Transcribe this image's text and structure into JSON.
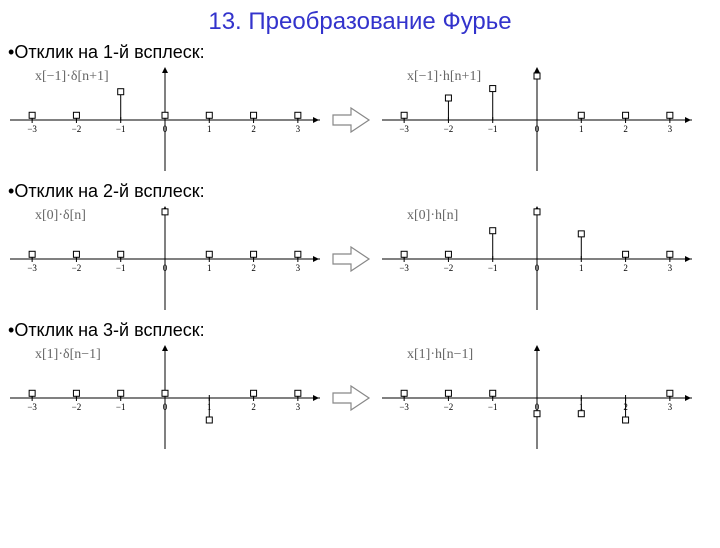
{
  "title": {
    "text": "13. Преобразование Фурье",
    "color": "#3333cc",
    "fontsize": 24
  },
  "bullet_color": "#000000",
  "sections": [
    {
      "bullet": "Отклик на 1-й всплеск:"
    },
    {
      "bullet": "Отклик на 2-й всплеск:"
    },
    {
      "bullet": "Отклик на 3-й всплеск:"
    }
  ],
  "plot_style": {
    "axis_color": "#000000",
    "tick_color": "#000000",
    "marker_stroke": "#000000",
    "marker_fill": "#ffffff",
    "marker_size": 6,
    "line_width": 1,
    "tick_label_fontsize": 9,
    "formula_color": "#666666",
    "formula_fontsize": 14,
    "x_range": [
      -3.5,
      3.5
    ],
    "y_range": [
      -35,
      35
    ],
    "ticks": [
      -3,
      -2,
      -1,
      0,
      1,
      2,
      3
    ]
  },
  "arrow_style": {
    "stroke": "#888888",
    "fill": "#ffffff",
    "width": 40,
    "height": 28
  },
  "plots": {
    "r1_left": {
      "formula": "x[−1]·δ[n+1]",
      "formula_x": 25,
      "stems": [
        [
          -3,
          3
        ],
        [
          -2,
          3
        ],
        [
          -1,
          18
        ],
        [
          0,
          3
        ],
        [
          1,
          3
        ],
        [
          2,
          3
        ],
        [
          3,
          3
        ]
      ]
    },
    "r1_right": {
      "formula": "x[−1]·h[n+1]",
      "formula_x": 25,
      "stems": [
        [
          -3,
          3
        ],
        [
          -2,
          14
        ],
        [
          -1,
          20
        ],
        [
          0,
          28
        ],
        [
          1,
          3
        ],
        [
          2,
          3
        ],
        [
          3,
          3
        ]
      ]
    },
    "r2_left": {
      "formula": "x[0]·δ[n]",
      "formula_x": 25,
      "stems": [
        [
          -3,
          3
        ],
        [
          -2,
          3
        ],
        [
          -1,
          3
        ],
        [
          0,
          30
        ],
        [
          1,
          3
        ],
        [
          2,
          3
        ],
        [
          3,
          3
        ]
      ]
    },
    "r2_right": {
      "formula": "x[0]·h[n]",
      "formula_x": 25,
      "stems": [
        [
          -3,
          3
        ],
        [
          -2,
          3
        ],
        [
          -1,
          18
        ],
        [
          0,
          30
        ],
        [
          1,
          16
        ],
        [
          2,
          3
        ],
        [
          3,
          3
        ]
      ]
    },
    "r3_left": {
      "formula": "x[1]·δ[n−1]",
      "formula_x": 25,
      "stems": [
        [
          -3,
          3
        ],
        [
          -2,
          3
        ],
        [
          -1,
          3
        ],
        [
          0,
          3
        ],
        [
          1,
          -14
        ],
        [
          2,
          3
        ],
        [
          3,
          3
        ]
      ]
    },
    "r3_right": {
      "formula": "x[1]·h[n−1]",
      "formula_x": 25,
      "stems": [
        [
          -3,
          3
        ],
        [
          -2,
          3
        ],
        [
          -1,
          3
        ],
        [
          0,
          -10
        ],
        [
          1,
          -10
        ],
        [
          2,
          -14
        ],
        [
          3,
          3
        ]
      ]
    }
  }
}
